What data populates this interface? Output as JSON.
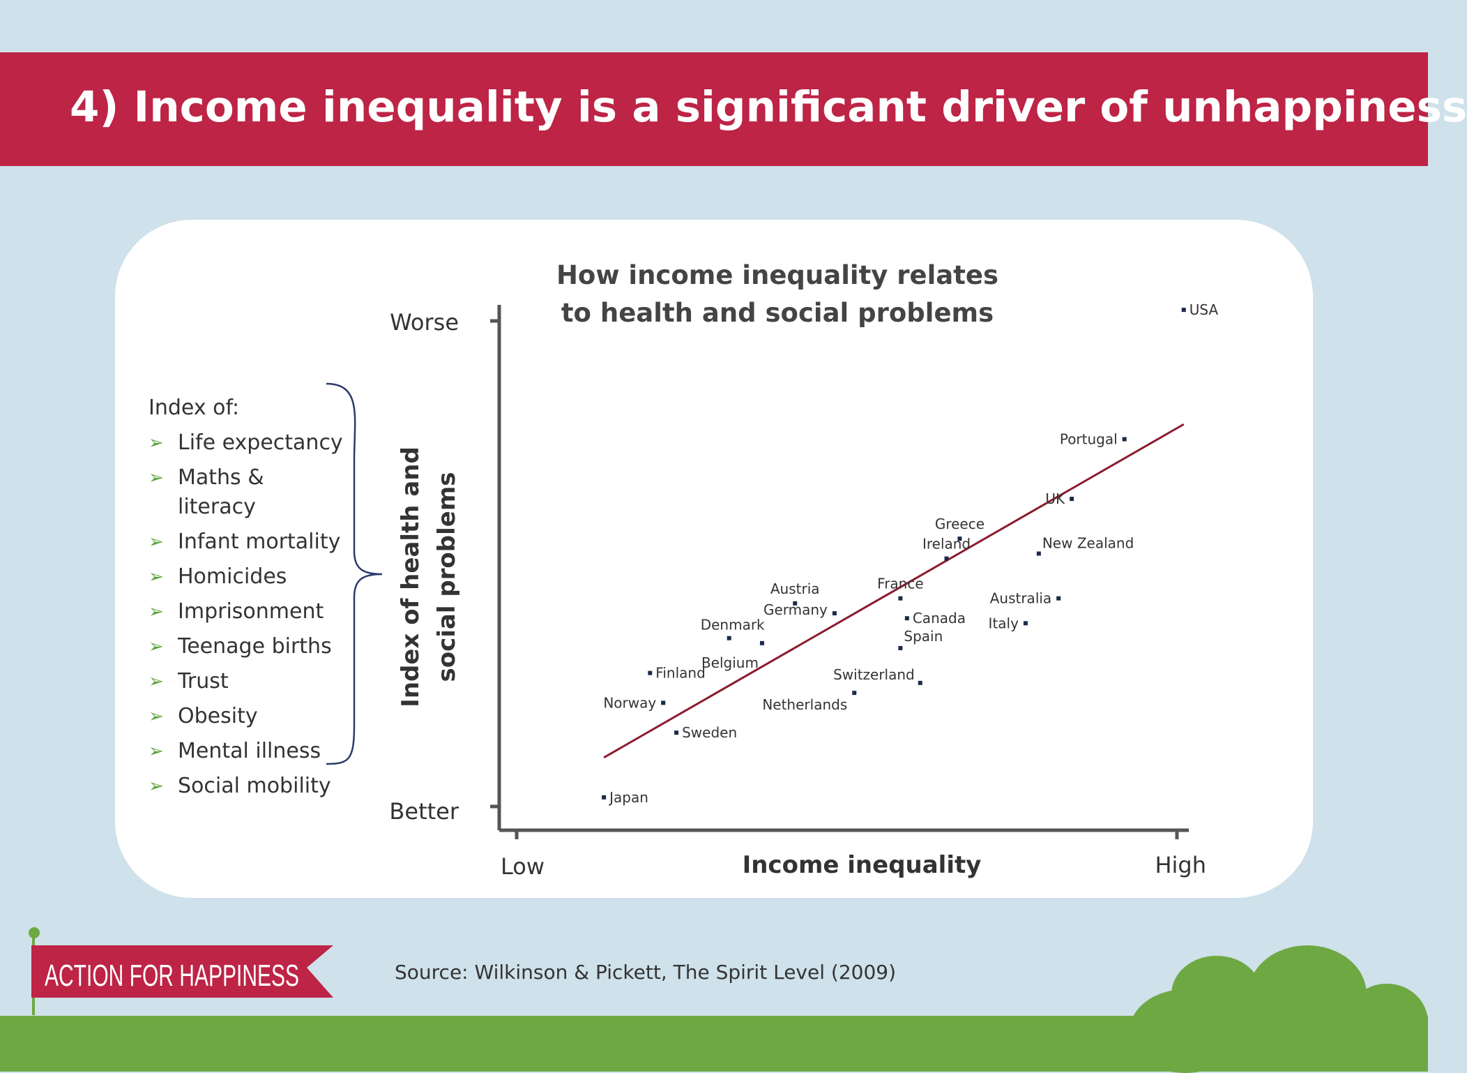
{
  "slide": {
    "title": "4) Income inequality is a significant driver of unhappiness",
    "source": "Source: Wilkinson & Pickett, The Spirit Level (2009)",
    "logo_text": "ACTION FOR HAPPINESS"
  },
  "index_list": {
    "heading": "Index of:",
    "items": [
      "Life expectancy",
      "Maths & literacy",
      "Infant mortality",
      "Homicides",
      "Imprisonment",
      "Teenage births",
      "Trust",
      "Obesity",
      "Mental illness",
      "Social mobility"
    ]
  },
  "colors": {
    "title_bar": "#bd2446",
    "background": "#cfe1ea",
    "grass": "#6ea843",
    "trend_line": "#8b1a2e",
    "bullet_arrow": "#5ba43c"
  },
  "chart_data": {
    "type": "scatter",
    "title": "How income inequality relates to health and social problems",
    "title_lines": [
      "How income inequality relates",
      "to health and social problems"
    ],
    "xlabel": "Income inequality",
    "ylabel": "Index of health and social problems",
    "ylabel_lines": [
      "Index of health and",
      "social problems"
    ],
    "x_low_label": "Low",
    "x_high_label": "High",
    "y_high_label": "Worse",
    "y_low_label": "Better",
    "xlim": [
      0,
      10
    ],
    "ylim": [
      0,
      10
    ],
    "grid": false,
    "points": [
      {
        "name": "USA",
        "x": 9.5,
        "y": 9.9
      },
      {
        "name": "Portugal",
        "x": 8.6,
        "y": 7.3
      },
      {
        "name": "UK",
        "x": 7.8,
        "y": 6.1
      },
      {
        "name": "Greece",
        "x": 6.1,
        "y": 5.3
      },
      {
        "name": "Ireland",
        "x": 5.9,
        "y": 4.9
      },
      {
        "name": "New Zealand",
        "x": 7.3,
        "y": 5.0
      },
      {
        "name": "Australia",
        "x": 7.6,
        "y": 4.1
      },
      {
        "name": "Italy",
        "x": 7.1,
        "y": 3.6
      },
      {
        "name": "France",
        "x": 5.2,
        "y": 4.1
      },
      {
        "name": "Canada",
        "x": 5.3,
        "y": 3.7
      },
      {
        "name": "Spain",
        "x": 5.2,
        "y": 3.1
      },
      {
        "name": "Switzerland",
        "x": 5.5,
        "y": 2.4
      },
      {
        "name": "Netherlands",
        "x": 4.5,
        "y": 2.2
      },
      {
        "name": "Austria",
        "x": 3.6,
        "y": 4.0
      },
      {
        "name": "Germany",
        "x": 4.2,
        "y": 3.8
      },
      {
        "name": "Belgium",
        "x": 3.1,
        "y": 3.2
      },
      {
        "name": "Denmark",
        "x": 2.6,
        "y": 3.3
      },
      {
        "name": "Finland",
        "x": 1.4,
        "y": 2.6
      },
      {
        "name": "Norway",
        "x": 1.6,
        "y": 2.0
      },
      {
        "name": "Sweden",
        "x": 1.8,
        "y": 1.4
      },
      {
        "name": "Japan",
        "x": 0.7,
        "y": 0.1
      }
    ],
    "trend_line": {
      "x": [
        0.7,
        9.5
      ],
      "y": [
        0.9,
        7.6
      ]
    }
  }
}
